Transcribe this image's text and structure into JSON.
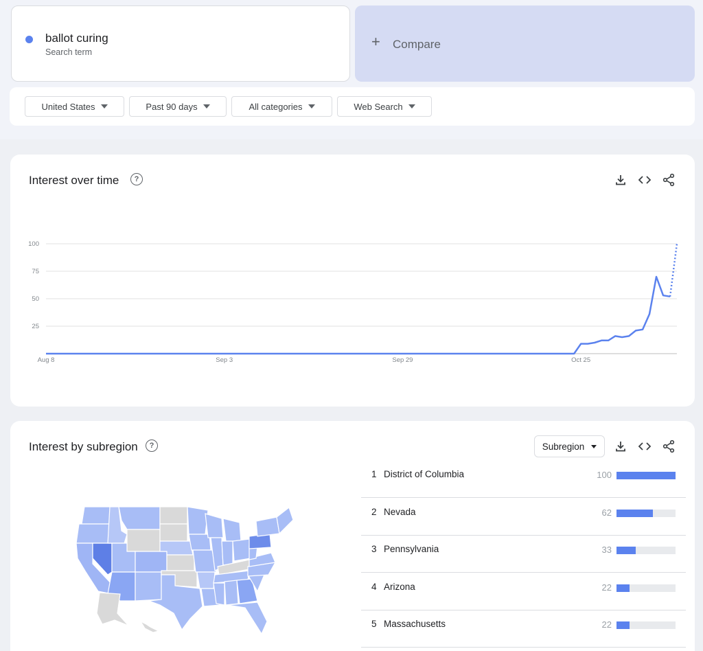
{
  "search_term": {
    "name": "ballot curing",
    "subtitle": "Search term",
    "color": "#5b82ee"
  },
  "compare": {
    "plus": "+",
    "label": "Compare"
  },
  "filters": [
    {
      "label": "United States"
    },
    {
      "label": "Past 90 days"
    },
    {
      "label": "All categories"
    },
    {
      "label": "Web Search"
    }
  ],
  "interest_over_time": {
    "title": "Interest over time",
    "help_icon": "?",
    "icons": [
      "download-icon",
      "embed-icon",
      "share-icon"
    ]
  },
  "chart_data": {
    "type": "line",
    "title": "Interest over time",
    "xlabel": "",
    "ylabel": "",
    "ylim": [
      0,
      100
    ],
    "yticks": [
      25,
      50,
      75,
      100
    ],
    "xticks": [
      "Aug 8",
      "Sep 3",
      "Sep 29",
      "Oct 25"
    ],
    "x_start": "Aug 8",
    "grid": true,
    "series": [
      {
        "color": "#5b82ee",
        "values": [
          0,
          0,
          0,
          0,
          0,
          0,
          0,
          0,
          0,
          0,
          0,
          0,
          0,
          0,
          0,
          0,
          0,
          0,
          0,
          0,
          0,
          0,
          0,
          0,
          0,
          0,
          0,
          0,
          0,
          0,
          0,
          0,
          0,
          0,
          0,
          0,
          0,
          0,
          0,
          0,
          0,
          0,
          0,
          0,
          0,
          0,
          0,
          0,
          0,
          0,
          0,
          0,
          0,
          0,
          0,
          0,
          0,
          0,
          0,
          0,
          0,
          0,
          0,
          0,
          0,
          0,
          0,
          0,
          0,
          0,
          0,
          0,
          0,
          0,
          0,
          0,
          0,
          0,
          9,
          9,
          10,
          12,
          12,
          16,
          15,
          16,
          21,
          22,
          36,
          70,
          53,
          52,
          100
        ],
        "partial_last": true
      }
    ]
  },
  "interest_by_subregion": {
    "title": "Interest by subregion",
    "help_icon": "?",
    "select_label": "Subregion",
    "icons": [
      "download-icon",
      "embed-icon",
      "share-icon"
    ],
    "rows": [
      {
        "rank": "1",
        "name": "District of Columbia",
        "value": "100",
        "fraction": 1.0
      },
      {
        "rank": "2",
        "name": "Nevada",
        "value": "62",
        "fraction": 0.62
      },
      {
        "rank": "3",
        "name": "Pennsylvania",
        "value": "33",
        "fraction": 0.33
      },
      {
        "rank": "4",
        "name": "Arizona",
        "value": "22",
        "fraction": 0.22
      },
      {
        "rank": "5",
        "name": "Massachusetts",
        "value": "22",
        "fraction": 0.22
      }
    ]
  }
}
